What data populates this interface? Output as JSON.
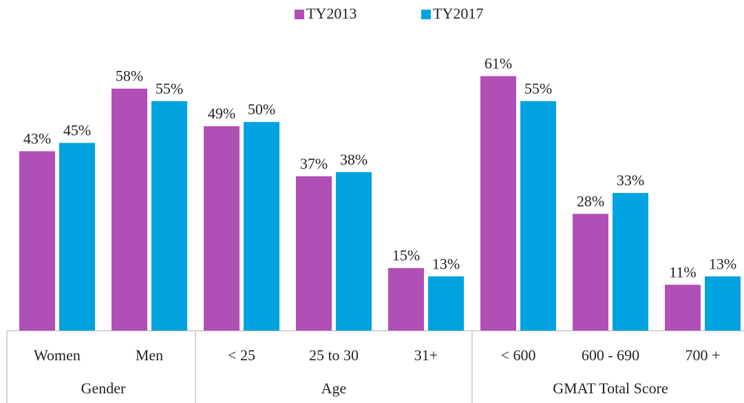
{
  "chart_data": {
    "type": "bar",
    "groups": [
      {
        "name": "Gender",
        "categories": [
          "Women",
          "Men"
        ]
      },
      {
        "name": "Age",
        "categories": [
          "< 25",
          "25 to 30",
          "31+"
        ]
      },
      {
        "name": "GMAT Total Score",
        "categories": [
          "< 600",
          "600 - 690",
          "700 +"
        ]
      }
    ],
    "series": [
      {
        "name": "TY2013",
        "color": "#b04fb5",
        "values": [
          43,
          58,
          49,
          37,
          15,
          61,
          28,
          11
        ],
        "value_labels": [
          "43%",
          "58%",
          "49%",
          "37%",
          "15%",
          "61%",
          "28%",
          "11%"
        ]
      },
      {
        "name": "TY2017",
        "color": "#00a2e0",
        "values": [
          45,
          55,
          50,
          38,
          13,
          55,
          33,
          13
        ],
        "value_labels": [
          "45%",
          "55%",
          "50%",
          "38%",
          "13%",
          "55%",
          "33%",
          "13%"
        ]
      }
    ],
    "ylim": [
      0,
      70
    ],
    "legend": "top"
  }
}
